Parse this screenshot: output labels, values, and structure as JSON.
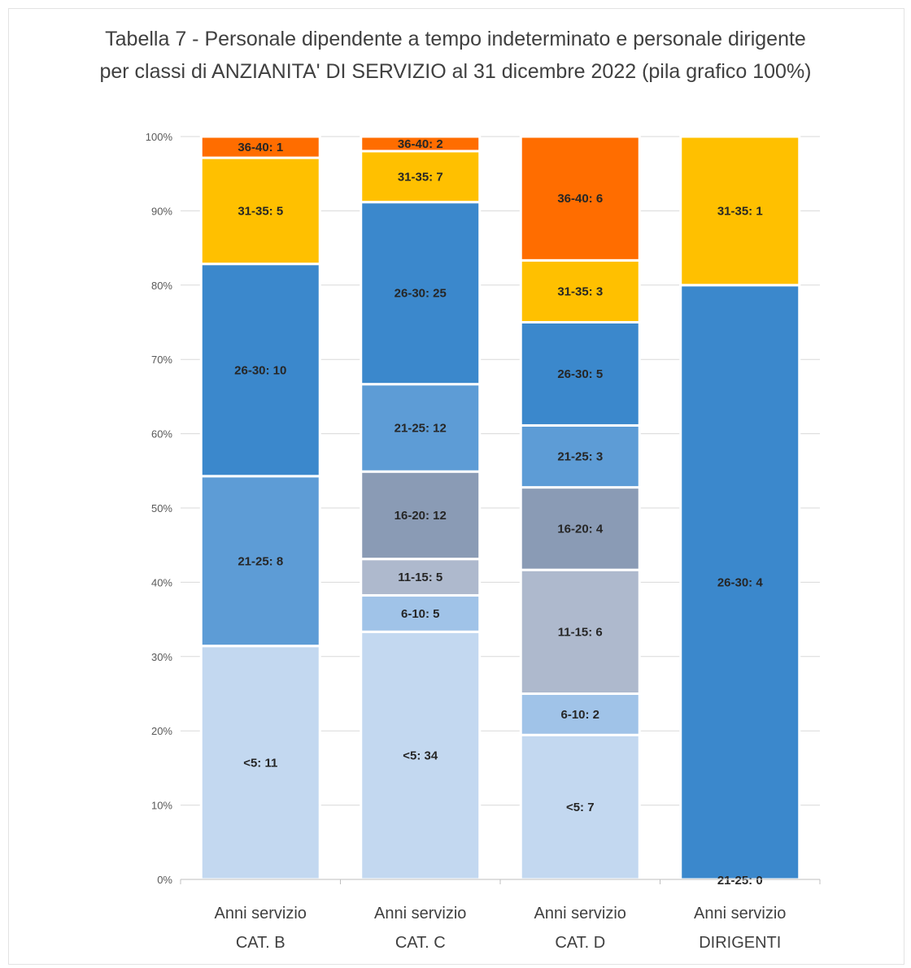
{
  "chart_data": {
    "type": "bar",
    "stacked": true,
    "normalized": true,
    "title": "Tabella 7 - Personale dipendente a tempo indeterminato e personale dirigente",
    "subtitle": "per classi di ANZIANITA' DI SERVIZIO al 31 dicembre 2022 (pila grafico 100%)",
    "categories": [
      [
        "Anni servizio",
        "CAT. B"
      ],
      [
        "Anni servizio",
        "CAT. C"
      ],
      [
        "Anni servizio",
        "CAT. D"
      ],
      [
        "Anni servizio",
        "DIRIGENTI"
      ]
    ],
    "ylim": [
      0,
      100
    ],
    "yticks": [
      "0%",
      "10%",
      "20%",
      "30%",
      "40%",
      "50%",
      "60%",
      "70%",
      "80%",
      "90%",
      "100%"
    ],
    "grid": true,
    "legend": "none",
    "series": [
      {
        "key": "<5",
        "color": "#c3d8f0",
        "values": [
          11,
          34,
          7,
          null
        ]
      },
      {
        "key": "6-10",
        "color": "#a0c3e8",
        "values": [
          null,
          5,
          2,
          null
        ]
      },
      {
        "key": "11-15",
        "color": "#aeb9cd",
        "values": [
          null,
          5,
          6,
          null
        ]
      },
      {
        "key": "16-20",
        "color": "#8a9bb5",
        "values": [
          null,
          12,
          4,
          null
        ]
      },
      {
        "key": "21-25",
        "color": "#5d9cd6",
        "values": [
          8,
          12,
          3,
          0
        ]
      },
      {
        "key": "26-30",
        "color": "#3b88cc",
        "values": [
          10,
          25,
          5,
          4
        ]
      },
      {
        "key": "31-35",
        "color": "#ffc000",
        "values": [
          5,
          7,
          3,
          1
        ]
      },
      {
        "key": "36-40",
        "color": "#ff6d00",
        "values": [
          1,
          2,
          6,
          null
        ]
      }
    ]
  }
}
